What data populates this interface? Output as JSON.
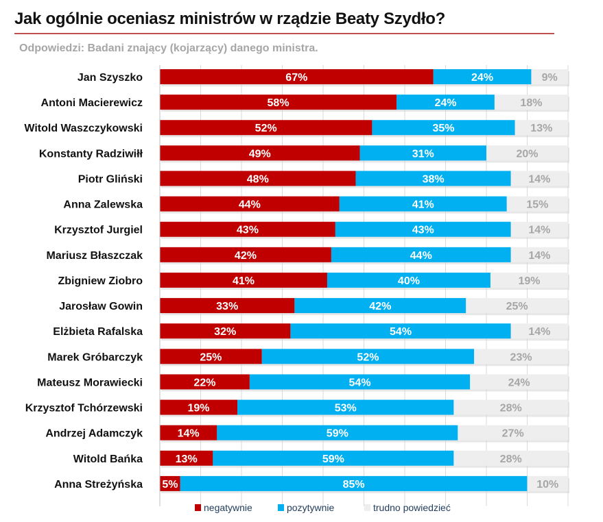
{
  "chart_data": {
    "type": "bar",
    "orientation": "horizontal",
    "stacked": true,
    "title": "Jak ogólnie oceniasz ministrów w rządzie Beaty Szydło?",
    "subtitle": "Odpowiedzi: Badani znający (kojarzący) danego ministra.",
    "categories": [
      "Jan Szyszko",
      "Antoni Macierewicz",
      "Witold Waszczykowski",
      "Konstanty Radziwiłł",
      "Piotr Gliński",
      "Anna Zalewska",
      "Krzysztof Jurgiel",
      "Mariusz Błaszczak",
      "Zbigniew Ziobro",
      "Jarosław Gowin",
      "Elżbieta Rafalska",
      "Marek Gróbarczyk",
      "Mateusz Morawiecki",
      "Krzysztof Tchórzewski",
      "Andrzej Adamczyk",
      "Witold Bańka",
      "Anna Streżyńska"
    ],
    "series": [
      {
        "name": "negatywnie",
        "color": "#c00000",
        "label_color": "#ffffff",
        "values": [
          67,
          58,
          52,
          49,
          48,
          44,
          43,
          42,
          41,
          33,
          32,
          25,
          22,
          19,
          14,
          13,
          5
        ]
      },
      {
        "name": "pozytywnie",
        "color": "#00b0f0",
        "label_color": "#ffffff",
        "values": [
          24,
          24,
          35,
          31,
          38,
          41,
          43,
          44,
          40,
          42,
          54,
          52,
          54,
          53,
          59,
          59,
          85
        ]
      },
      {
        "name": "trudno powiedzieć",
        "color": "#eeeeee",
        "label_color": "#a6a6a6",
        "values": [
          9,
          18,
          13,
          20,
          14,
          15,
          14,
          14,
          19,
          25,
          14,
          23,
          24,
          28,
          27,
          28,
          10
        ]
      }
    ],
    "xlim": [
      0,
      100
    ],
    "grid": true,
    "legend": "bottom",
    "value_suffix": "%"
  }
}
